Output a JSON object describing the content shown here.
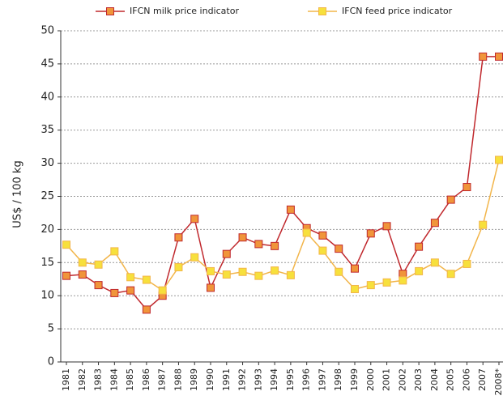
{
  "chart_data": {
    "type": "line",
    "y_label": "US$ / 100 kg",
    "categories": [
      "1981",
      "1982",
      "1983",
      "1984",
      "1985",
      "1986",
      "1987",
      "1988",
      "1989",
      "1990",
      "1991",
      "1992",
      "1993",
      "1994",
      "1995",
      "1996",
      "1997",
      "1998",
      "1999",
      "2000",
      "2001",
      "2002",
      "2003",
      "2004",
      "2005",
      "2006",
      "2007",
      "2008*"
    ],
    "series": [
      {
        "name": "IFCN milk price indicator",
        "color": "#c0282d",
        "marker_fill": "#f0953a",
        "values": [
          13.0,
          13.2,
          11.6,
          10.4,
          10.8,
          7.9,
          10.0,
          18.8,
          21.6,
          11.2,
          16.3,
          18.8,
          17.8,
          17.5,
          23.0,
          20.2,
          19.1,
          17.1,
          14.1,
          19.4,
          20.5,
          13.3,
          17.4,
          21.0,
          24.5,
          26.4,
          46.1,
          46.1
        ]
      },
      {
        "name": "IFCN feed price indicator",
        "color": "#f2b54a",
        "marker_fill": "#f7e03c",
        "values": [
          17.7,
          15.0,
          14.7,
          16.7,
          12.8,
          12.4,
          10.8,
          14.3,
          15.8,
          13.7,
          13.2,
          13.6,
          13.0,
          13.8,
          13.1,
          19.5,
          16.8,
          13.6,
          11.0,
          11.6,
          12.0,
          12.3,
          13.7,
          15.0,
          13.3,
          14.8,
          20.7,
          30.5
        ]
      }
    ],
    "ylim": [
      0,
      50
    ],
    "yticks": [
      0,
      5,
      10,
      15,
      20,
      25,
      30,
      35,
      40,
      45,
      50
    ],
    "grid": true
  }
}
